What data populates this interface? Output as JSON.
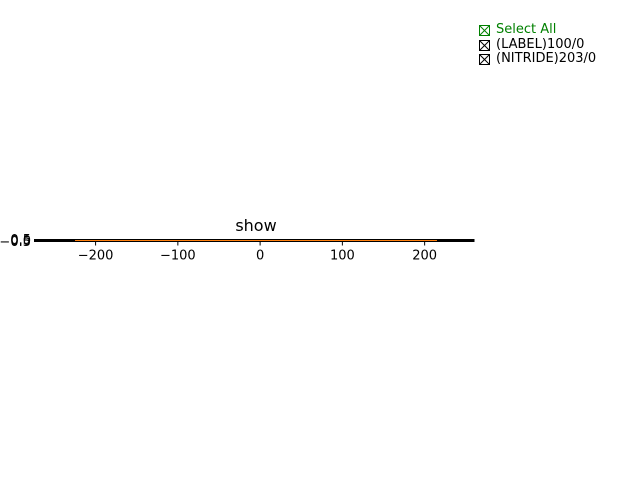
{
  "plot": {
    "title": "show",
    "x_ticks": [
      "−200",
      "−100",
      "0",
      "100",
      "200"
    ],
    "y_ticks": [
      "−0.5",
      "0.0",
      "0.5"
    ]
  },
  "legend": {
    "select_all": {
      "label": "Select All",
      "checked": true,
      "color": "#008000"
    },
    "items": [
      {
        "label": "(LABEL)100/0",
        "checked": true,
        "color": "#000000"
      },
      {
        "label": "(NITRIDE)203/0",
        "checked": true,
        "color": "#000000"
      }
    ]
  },
  "colors": {
    "axis": "#000000",
    "series_line": "#ff7f0e",
    "text": "#000000"
  },
  "chart_data": {
    "type": "line",
    "title": "show",
    "xlabel": "",
    "ylabel": "",
    "xlim": [
      -270,
      260
    ],
    "ylim": [
      -0.5,
      0.5
    ],
    "x_ticks": [
      -200,
      -100,
      0,
      100,
      200
    ],
    "y_ticks": [
      -0.5,
      0.0,
      0.5
    ],
    "grid": false,
    "legend_placement": "top-right",
    "series": [
      {
        "x": [
          -270,
          -262,
          -262,
          -238,
          -238,
          230,
          230,
          260
        ],
        "y": [
          0,
          0,
          0,
          0,
          0,
          0,
          0,
          0
        ]
      },
      {
        "x": [
          -225,
          215
        ],
        "y": [
          0,
          0
        ]
      }
    ]
  }
}
